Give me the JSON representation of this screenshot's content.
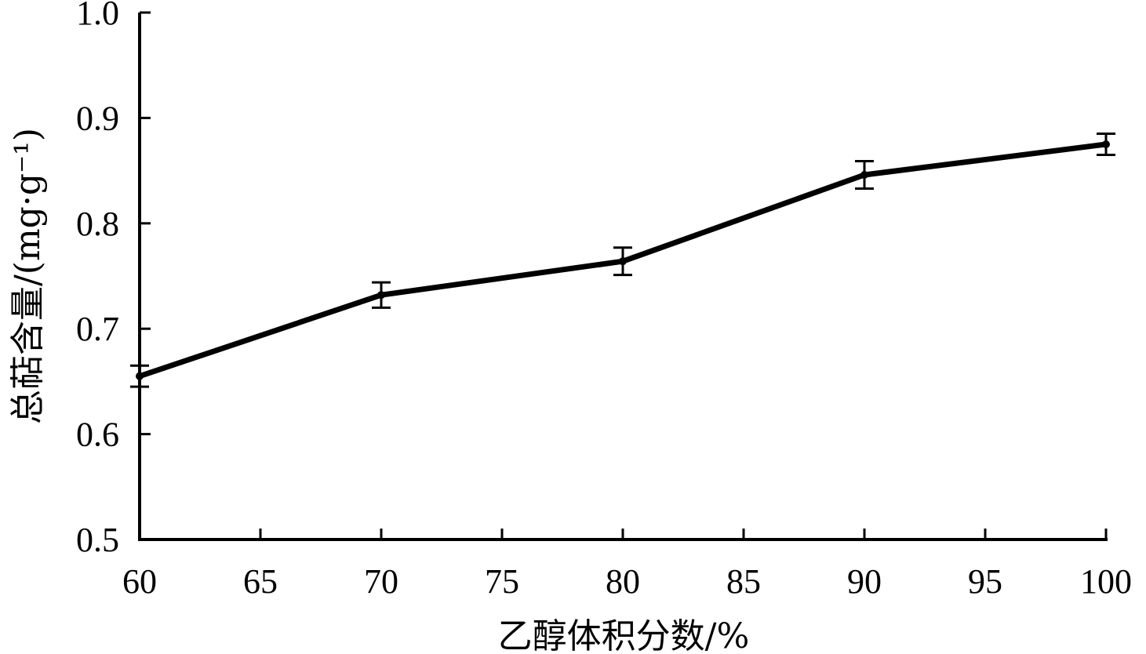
{
  "chart_data": {
    "type": "line",
    "xlabel": "乙醇体积分数/%",
    "ylabel": "总萜含量/(mg·g⁻¹)",
    "xlim": [
      60,
      100
    ],
    "ylim": [
      0.5,
      1.0
    ],
    "x_ticks": [
      "60",
      "65",
      "70",
      "75",
      "80",
      "85",
      "90",
      "95",
      "100"
    ],
    "y_ticks": [
      "0.5",
      "0.6",
      "0.7",
      "0.8",
      "0.9",
      "1.0"
    ],
    "grid": false,
    "legend": "none",
    "line_color": "#000000",
    "series": [
      {
        "x": [
          60,
          70,
          80,
          90,
          100
        ],
        "y": [
          0.655,
          0.732,
          0.764,
          0.846,
          0.875
        ],
        "error": [
          0.01,
          0.012,
          0.013,
          0.013,
          0.01
        ]
      }
    ]
  }
}
